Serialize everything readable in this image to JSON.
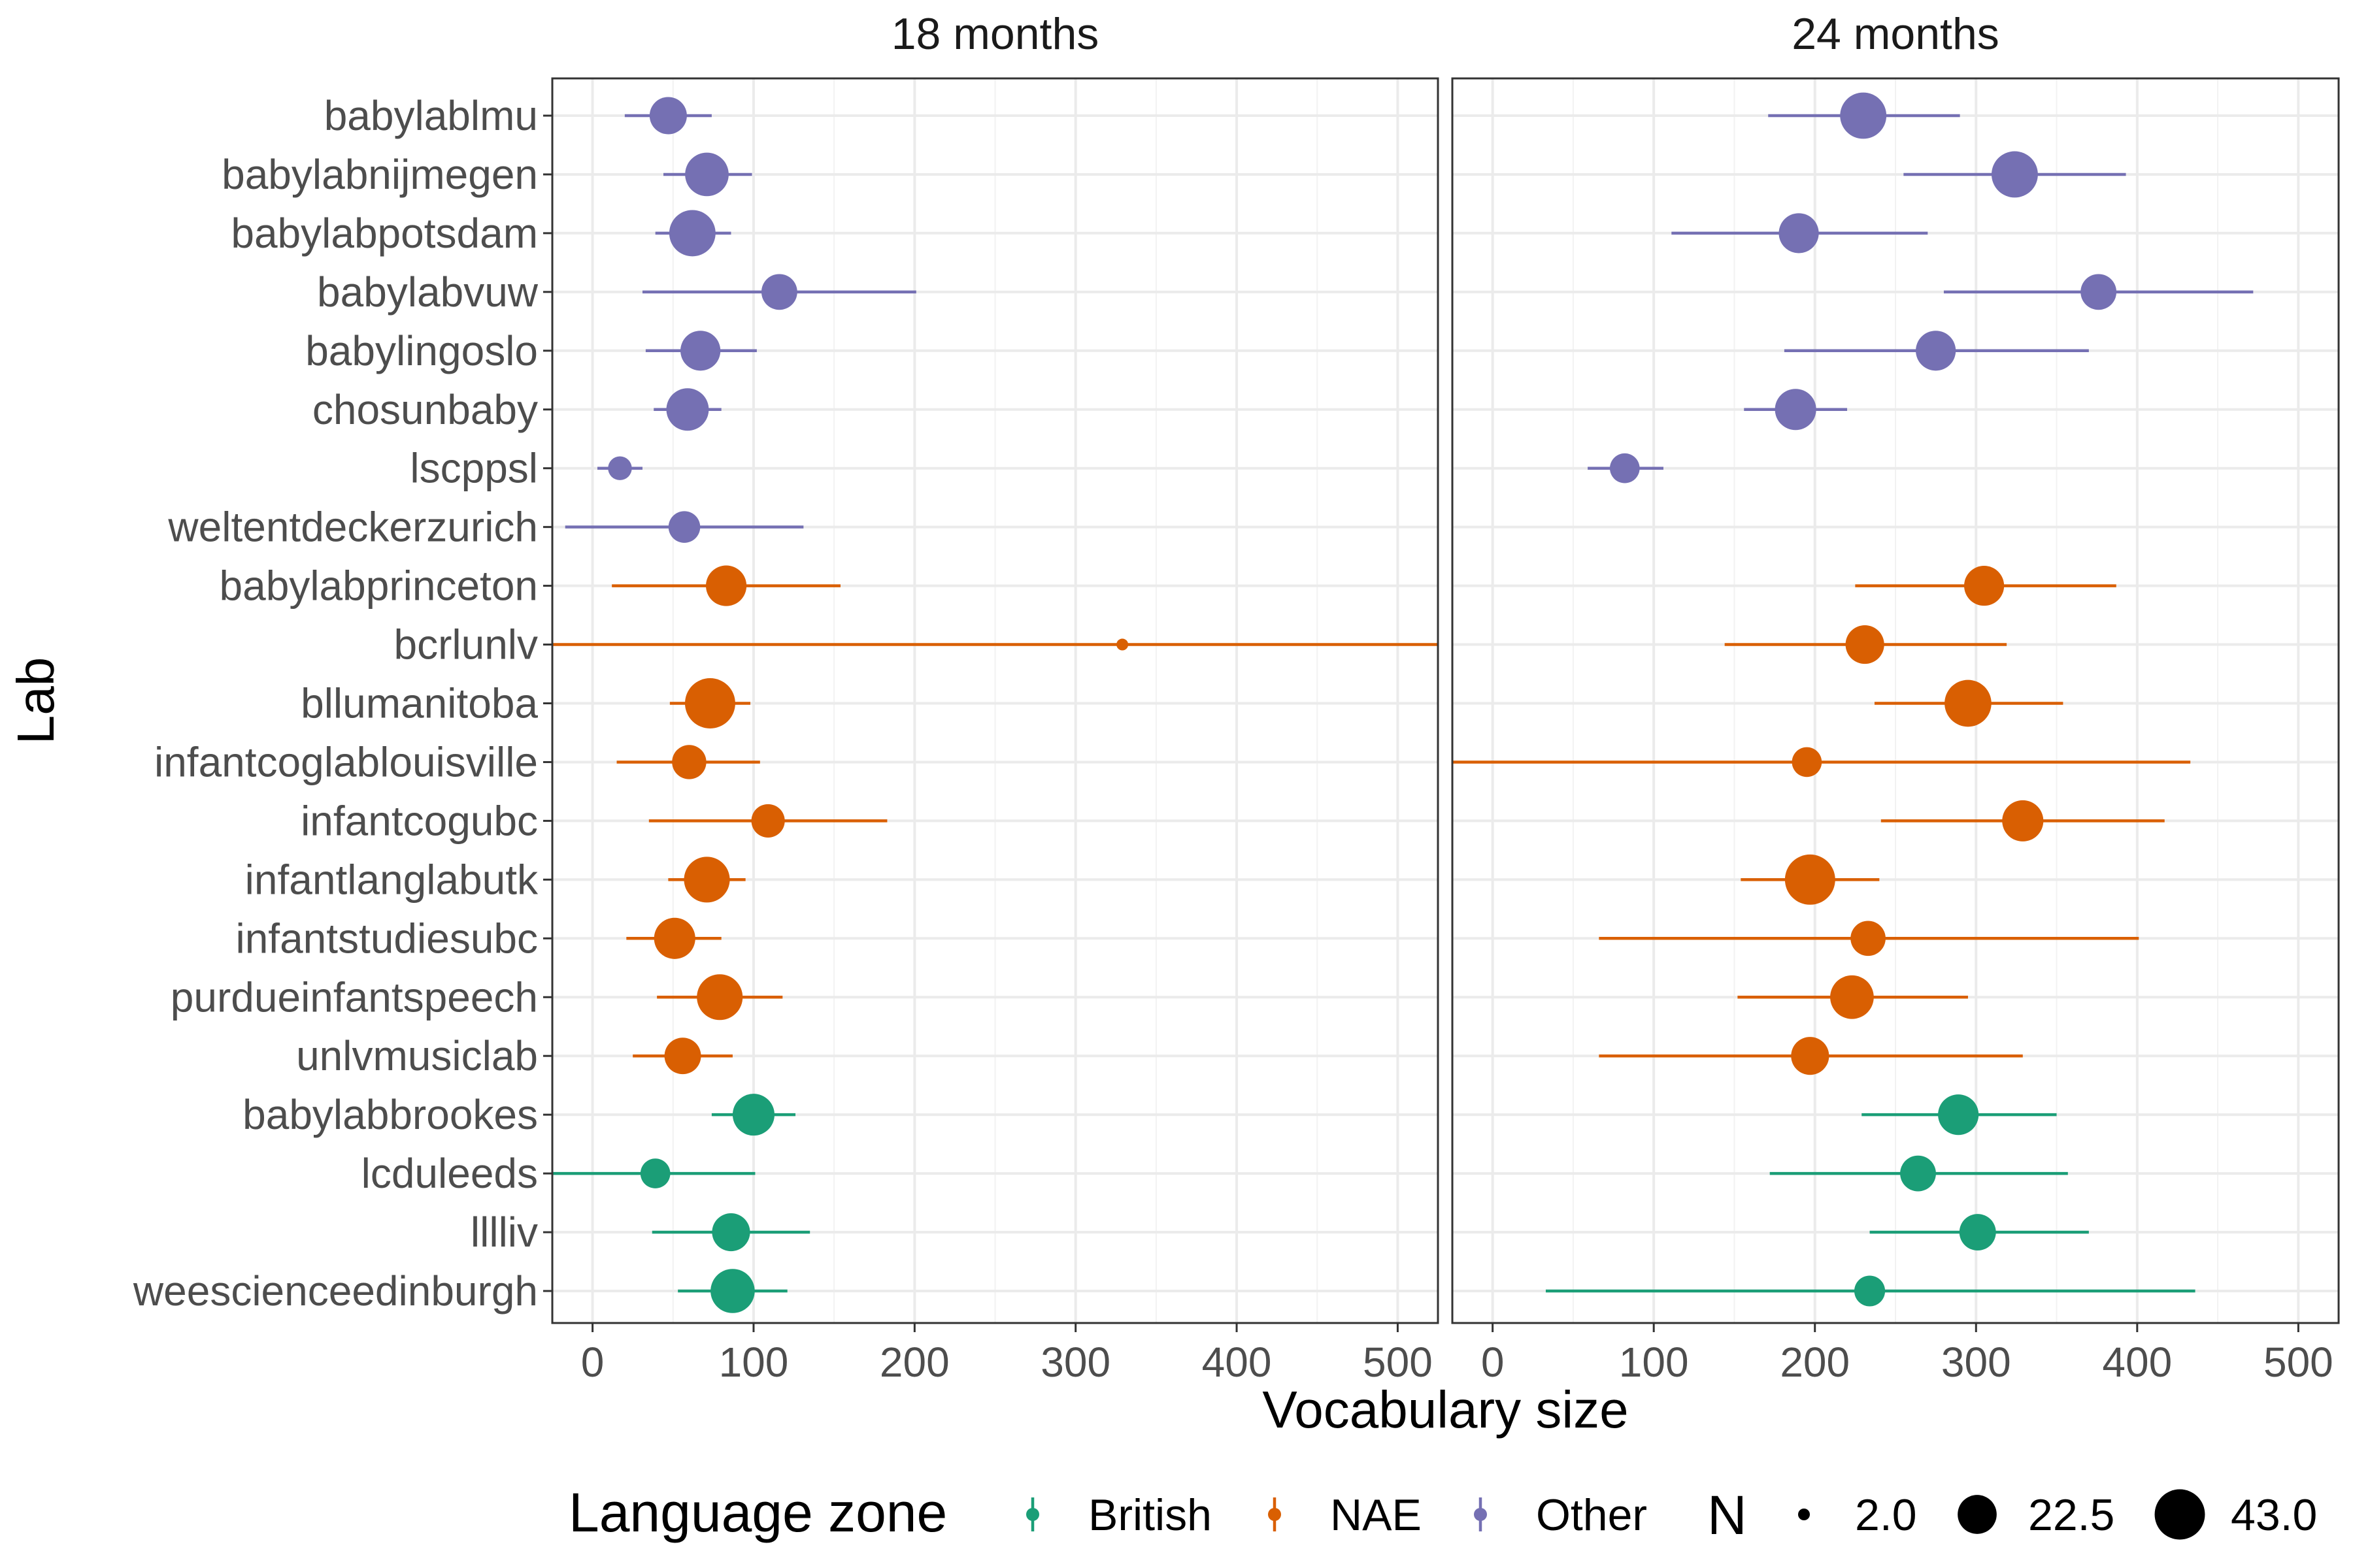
{
  "chart_data": {
    "type": "scatter",
    "subtype": "dot-and-whisker (point with interval), faceted",
    "xlabel": "Vocabulary size",
    "ylabel": "Lab",
    "xlim": [
      -25,
      525
    ],
    "x_ticks": [
      0,
      100,
      200,
      300,
      400,
      500
    ],
    "grid": true,
    "facets": [
      "18 months",
      "24 months"
    ],
    "labs": [
      "babylablmu",
      "babylabnijmegen",
      "babylabpotsdam",
      "babylabvuw",
      "babylingoslo",
      "chosunbaby",
      "lscppsl",
      "weltentdeckerzurich",
      "babylabprinceton",
      "bcrlunlv",
      "bllumanitoba",
      "infantcoglablouisville",
      "infantcogubc",
      "infantlanglabutk",
      "infantstudiesubc",
      "purdueinfantspeech",
      "unlvmusiclab",
      "babylabbrookes",
      "lcduleeds",
      "lllliv",
      "weescienceedinburgh"
    ],
    "zones": {
      "babylablmu": "Other",
      "babylabnijmegen": "Other",
      "babylabpotsdam": "Other",
      "babylabvuw": "Other",
      "babylingoslo": "Other",
      "chosunbaby": "Other",
      "lscppsl": "Other",
      "weltentdeckerzurich": "Other",
      "babylabprinceton": "NAE",
      "bcrlunlv": "NAE",
      "bllumanitoba": "NAE",
      "infantcoglablouisville": "NAE",
      "infantcogubc": "NAE",
      "infantlanglabutk": "NAE",
      "infantstudiesubc": "NAE",
      "purdueinfantspeech": "NAE",
      "unlvmusiclab": "NAE",
      "babylabbrookes": "British",
      "lcduleeds": "British",
      "lllliv": "British",
      "weescienceedinburgh": "British"
    },
    "series": [
      {
        "facet": "18 months",
        "points": [
          {
            "lab": "babylablmu",
            "x": 47,
            "lo": 20,
            "hi": 74,
            "n": 20
          },
          {
            "lab": "babylabnijmegen",
            "x": 71,
            "lo": 44,
            "hi": 99,
            "n": 30
          },
          {
            "lab": "babylabpotsdam",
            "x": 62,
            "lo": 39,
            "hi": 86,
            "n": 35
          },
          {
            "lab": "babylabvuw",
            "x": 116,
            "lo": 31,
            "hi": 201,
            "n": 18
          },
          {
            "lab": "babylingoslo",
            "x": 67,
            "lo": 33,
            "hi": 102,
            "n": 24
          },
          {
            "lab": "chosunbaby",
            "x": 59,
            "lo": 38,
            "hi": 80,
            "n": 28
          },
          {
            "lab": "lscppsl",
            "x": 17,
            "lo": 3,
            "hi": 31,
            "n": 6
          },
          {
            "lab": "weltentdeckerzurich",
            "x": 57,
            "lo": -17,
            "hi": 131,
            "n": 13
          },
          {
            "lab": "babylabprinceton",
            "x": 83,
            "lo": 12,
            "hi": 154,
            "n": 25
          },
          {
            "lab": "bcrlunlv",
            "x": 329,
            "lo": -25,
            "hi": 525,
            "n": 2
          },
          {
            "lab": "bllumanitoba",
            "x": 73,
            "lo": 48,
            "hi": 98,
            "n": 43
          },
          {
            "lab": "infantcoglablouisville",
            "x": 60,
            "lo": 15,
            "hi": 104,
            "n": 16
          },
          {
            "lab": "infantcogubc",
            "x": 109,
            "lo": 35,
            "hi": 183,
            "n": 15
          },
          {
            "lab": "infantlanglabutk",
            "x": 71,
            "lo": 47,
            "hi": 95,
            "n": 34
          },
          {
            "lab": "infantstudiesubc",
            "x": 51,
            "lo": 21,
            "hi": 80,
            "n": 26
          },
          {
            "lab": "purdueinfantspeech",
            "x": 79,
            "lo": 40,
            "hi": 118,
            "n": 34
          },
          {
            "lab": "unlvmusiclab",
            "x": 56,
            "lo": 25,
            "hi": 87,
            "n": 19
          },
          {
            "lab": "babylabbrookes",
            "x": 100,
            "lo": 74,
            "hi": 126,
            "n": 27
          },
          {
            "lab": "lcduleeds",
            "x": 39,
            "lo": -25,
            "hi": 101,
            "n": 11
          },
          {
            "lab": "lllliv",
            "x": 86,
            "lo": 37,
            "hi": 135,
            "n": 21
          },
          {
            "lab": "weescienceedinburgh",
            "x": 87,
            "lo": 53,
            "hi": 121,
            "n": 31
          }
        ]
      },
      {
        "facet": "24 months",
        "points": [
          {
            "lab": "babylablmu",
            "x": 230,
            "lo": 171,
            "hi": 290,
            "n": 35
          },
          {
            "lab": "babylabnijmegen",
            "x": 324,
            "lo": 255,
            "hi": 393,
            "n": 35
          },
          {
            "lab": "babylabpotsdam",
            "x": 190,
            "lo": 111,
            "hi": 270,
            "n": 24
          },
          {
            "lab": "babylabvuw",
            "x": 376,
            "lo": 280,
            "hi": 472,
            "n": 18
          },
          {
            "lab": "babylingoslo",
            "x": 275,
            "lo": 181,
            "hi": 370,
            "n": 24
          },
          {
            "lab": "chosunbaby",
            "x": 188,
            "lo": 156,
            "hi": 220,
            "n": 26
          },
          {
            "lab": "lscppsl",
            "x": 82,
            "lo": 59,
            "hi": 106,
            "n": 11
          },
          {
            "lab": "babylabprinceton",
            "x": 305,
            "lo": 225,
            "hi": 387,
            "n": 24
          },
          {
            "lab": "bcrlunlv",
            "x": 231,
            "lo": 144,
            "hi": 319,
            "n": 22
          },
          {
            "lab": "bllumanitoba",
            "x": 295,
            "lo": 237,
            "hi": 354,
            "n": 36
          },
          {
            "lab": "infantcoglablouisville",
            "x": 195,
            "lo": -25,
            "hi": 433,
            "n": 11
          },
          {
            "lab": "infantcogubc",
            "x": 329,
            "lo": 241,
            "hi": 417,
            "n": 26
          },
          {
            "lab": "infantlanglabutk",
            "x": 197,
            "lo": 154,
            "hi": 240,
            "n": 43
          },
          {
            "lab": "infantstudiesubc",
            "x": 233,
            "lo": 66,
            "hi": 401,
            "n": 17
          },
          {
            "lab": "purdueinfantspeech",
            "x": 223,
            "lo": 152,
            "hi": 295,
            "n": 30
          },
          {
            "lab": "unlvmusiclab",
            "x": 197,
            "lo": 66,
            "hi": 329,
            "n": 21
          },
          {
            "lab": "babylabbrookes",
            "x": 289,
            "lo": 229,
            "hi": 350,
            "n": 25
          },
          {
            "lab": "lcduleeds",
            "x": 264,
            "lo": 172,
            "hi": 357,
            "n": 18
          },
          {
            "lab": "lllliv",
            "x": 301,
            "lo": 234,
            "hi": 370,
            "n": 19
          },
          {
            "lab": "weescienceedinburgh",
            "x": 234,
            "lo": 33,
            "hi": 436,
            "n": 12
          }
        ]
      }
    ],
    "legend": {
      "placement": "bottom",
      "color_title": "Language zone",
      "color_entries": [
        {
          "name": "British",
          "color": "#1b9e77"
        },
        {
          "name": "NAE",
          "color": "#d95f02"
        },
        {
          "name": "Other",
          "color": "#7570b3"
        }
      ],
      "size_title": "N",
      "size_entries": [
        "2.0",
        "22.5",
        "43.0"
      ],
      "size_values": [
        2,
        22.5,
        43
      ]
    }
  }
}
